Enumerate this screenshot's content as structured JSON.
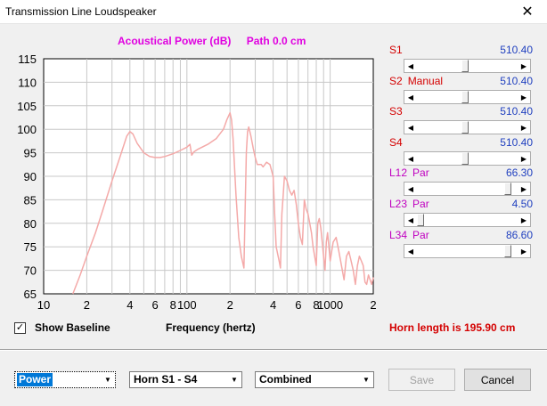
{
  "window": {
    "title": "Transmission Line Loudspeaker",
    "close": "✕"
  },
  "chart_header": {
    "quantity": "Acoustical Power (dB)",
    "path": "Path 0.0 cm"
  },
  "chart_data": {
    "type": "line",
    "title": "Acoustical Power (dB)   Path 0.0 cm",
    "xlabel": "Frequency (hertz)",
    "ylabel": "",
    "x_scale": "log",
    "xlim": [
      10,
      2000
    ],
    "ylim": [
      65,
      115
    ],
    "y_ticks": [
      65,
      70,
      75,
      80,
      85,
      90,
      95,
      100,
      105,
      110,
      115
    ],
    "x_tick_labels": [
      {
        "v": 10,
        "t": "10"
      },
      {
        "v": 20,
        "t": "2"
      },
      {
        "v": 40,
        "t": "4"
      },
      {
        "v": 60,
        "t": "6"
      },
      {
        "v": 80,
        "t": "8"
      },
      {
        "v": 100,
        "t": "100"
      },
      {
        "v": 200,
        "t": "2"
      },
      {
        "v": 400,
        "t": "4"
      },
      {
        "v": 600,
        "t": "6"
      },
      {
        "v": 800,
        "t": "8"
      },
      {
        "v": 1000,
        "t": "1000"
      },
      {
        "v": 2000,
        "t": "2"
      }
    ],
    "grid": true,
    "series": [
      {
        "color": "#f4a9a8",
        "x": [
          16,
          18,
          20,
          23,
          26,
          30,
          34,
          38,
          40,
          42,
          45,
          50,
          55,
          60,
          65,
          70,
          80,
          90,
          100,
          105,
          108,
          112,
          120,
          140,
          160,
          180,
          190,
          200,
          205,
          210,
          220,
          230,
          240,
          250,
          260,
          265,
          270,
          280,
          290,
          300,
          310,
          320,
          330,
          340,
          350,
          360,
          380,
          400,
          410,
          420,
          440,
          450,
          460,
          470,
          480,
          500,
          520,
          540,
          560,
          580,
          600,
          620,
          640,
          660,
          680,
          700,
          720,
          740,
          760,
          780,
          800,
          820,
          840,
          860,
          880,
          900,
          920,
          940,
          960,
          980,
          1000,
          1050,
          1100,
          1150,
          1200,
          1250,
          1300,
          1350,
          1400,
          1450,
          1500,
          1550,
          1600,
          1650,
          1700,
          1750,
          1800,
          1850,
          1900,
          1950,
          2000
        ],
        "y": [
          65,
          69,
          73,
          78,
          83,
          89,
          94,
          98.5,
          99.5,
          99,
          97,
          95,
          94.2,
          94,
          94,
          94.2,
          94.8,
          95.5,
          96.2,
          96.8,
          94.5,
          95.2,
          95.8,
          96.8,
          98,
          100,
          102,
          103.5,
          102,
          98,
          86,
          77,
          73,
          70.5,
          95,
          99.5,
          100.5,
          98.5,
          96,
          94,
          92.5,
          92.5,
          92.5,
          92,
          92.5,
          93,
          92.5,
          90,
          82,
          75,
          72,
          70.5,
          82,
          86,
          90,
          89,
          87,
          86,
          87,
          84,
          80,
          77,
          75.5,
          85,
          83,
          82,
          80,
          78,
          75,
          73,
          71,
          80,
          81,
          79,
          76,
          73,
          70,
          76,
          78,
          75,
          72,
          76,
          77,
          74,
          71,
          68,
          73,
          74,
          72,
          70,
          67,
          71,
          73,
          72,
          71,
          67.5,
          67,
          69,
          68,
          67,
          68.5
        ]
      }
    ]
  },
  "controls": [
    {
      "name": "S1",
      "mode": "",
      "value": "510.40",
      "thumb": 0.48,
      "label_color": "#d40000"
    },
    {
      "name": "S2",
      "mode": "Manual",
      "value": "510.40",
      "thumb": 0.48,
      "label_color": "#d40000"
    },
    {
      "name": "S3",
      "mode": "",
      "value": "510.40",
      "thumb": 0.48,
      "label_color": "#d40000"
    },
    {
      "name": "S4",
      "mode": "",
      "value": "510.40",
      "thumb": 0.48,
      "label_color": "#d40000"
    },
    {
      "name": "L12",
      "mode": "Par",
      "value": "66.30",
      "thumb": 0.93,
      "label_color": "#c000c0"
    },
    {
      "name": "L23",
      "mode": "Par",
      "value": "4.50",
      "thumb": 0.0,
      "label_color": "#c000c0"
    },
    {
      "name": "L34",
      "mode": "Par",
      "value": "86.60",
      "thumb": 0.93,
      "label_color": "#c000c0"
    }
  ],
  "baseline": {
    "checked": "✓",
    "label": "Show Baseline"
  },
  "freq_axis_label": "Frequency (hertz)",
  "horn_length": "Horn length is 195.90 cm",
  "selects": {
    "quantity": "Power",
    "horn": "Horn S1 - S4",
    "mode": "Combined"
  },
  "buttons": {
    "save": "Save",
    "cancel": "Cancel"
  },
  "glyphs": {
    "left": "◀",
    "right": "▶",
    "down": "▼"
  }
}
